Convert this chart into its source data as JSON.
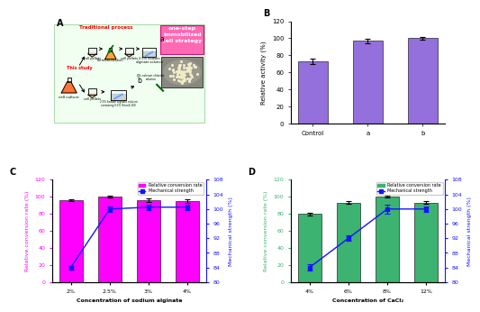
{
  "panel_B": {
    "categories": [
      "Control",
      "a",
      "b"
    ],
    "values": [
      73,
      97,
      100
    ],
    "errors": [
      3,
      2.5,
      2
    ],
    "bar_color": "#9370DB",
    "ylabel": "Relative activity (%)",
    "ylim": [
      0,
      120
    ],
    "yticks": [
      0,
      20,
      40,
      60,
      80,
      100,
      120
    ]
  },
  "panel_C": {
    "categories": [
      "2%",
      "2.5%",
      "3%",
      "4%"
    ],
    "bar_values": [
      96,
      100,
      96,
      95
    ],
    "bar_errors": [
      1.5,
      1.2,
      2.0,
      1.8
    ],
    "line_values": [
      84,
      100,
      100.5,
      100.5
    ],
    "line_errors": [
      0.5,
      0.8,
      0.8,
      0.8
    ],
    "bar_color": "#FF00FF",
    "line_color": "#1414FF",
    "ylabel_left": "Relative conversion rate (%)",
    "ylabel_right": "Mechanical strength (%)",
    "xlabel": "Concentration of sodium alginate",
    "ylim_left": [
      0,
      120
    ],
    "ylim_right": [
      80,
      108
    ],
    "yticks_left": [
      0,
      20,
      40,
      60,
      80,
      100,
      120
    ],
    "yticks_right": [
      80,
      84,
      88,
      92,
      96,
      100,
      104,
      108
    ],
    "legend_bar": "Relative conversion rate",
    "legend_line": "Mechanical strength"
  },
  "panel_D": {
    "categories": [
      "4%",
      "6%",
      "8%",
      "12%"
    ],
    "bar_values": [
      80,
      93,
      100,
      93
    ],
    "bar_errors": [
      1.5,
      1.5,
      1.2,
      1.5
    ],
    "line_values": [
      84,
      92,
      100,
      100
    ],
    "line_errors": [
      0.8,
      0.8,
      1.2,
      0.8
    ],
    "bar_color": "#3CB371",
    "line_color": "#1414FF",
    "ylabel_left": "Relative conversion rate (%)",
    "ylabel_right": "Mechanical strength (%)",
    "xlabel": "Concentration of CaCl₂",
    "ylim_left": [
      0,
      120
    ],
    "ylim_right": [
      80,
      108
    ],
    "yticks_left": [
      0,
      20,
      40,
      60,
      80,
      100,
      120
    ],
    "yticks_right": [
      80,
      84,
      88,
      92,
      96,
      100,
      104,
      108
    ],
    "legend_bar": "Relative conversion rate",
    "legend_line": "Mechanical strength"
  },
  "background_color": "#FFFFFF",
  "panel_A_bg_color": "#E8FFE8",
  "panel_A_border_color": "#90EE90",
  "onestep_bg": "#FF69B4",
  "onestep_border": "#CC1177"
}
